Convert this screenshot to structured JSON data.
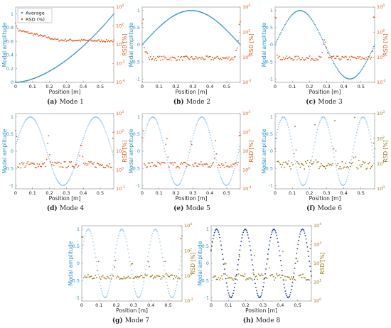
{
  "legend": {
    "average_label": "Average",
    "rsd_label": "RSD (%)"
  },
  "colors": {
    "blue": "#2b8fc9",
    "blue_light": "#8fc4ea",
    "orange": "#e05a1a",
    "olive": "#9a7a12",
    "navy": "#1f3c9c"
  },
  "chart_data": [
    {
      "type": "scatter",
      "panel": "a",
      "caption_bold": "(a)",
      "caption_text": "Mode 1",
      "xlabel": "Position [m]",
      "ylabel": "Modal amplitude",
      "y2label": "RSD [%]",
      "xlim": [
        0,
        0.58
      ],
      "ylim": [
        0,
        1.1
      ],
      "y2_log": true,
      "y2lim": [
        -4,
        4
      ],
      "x_ticks": [
        "0",
        "0.1",
        "0.2",
        "0.3",
        "0.4",
        "0.5"
      ],
      "y_ticks": [
        0,
        0.2,
        0.4,
        0.6,
        0.8,
        1
      ],
      "y2_ticks": [
        -4,
        -2,
        0,
        2,
        4
      ],
      "mode": 1,
      "phase": 0,
      "rsd_profile": "mode1",
      "series": [
        {
          "name": "Average",
          "values": "modal shape, 0 → 1"
        },
        {
          "name": "RSD (%)",
          "values": "≈10–100%, decreasing with position"
        }
      ]
    },
    {
      "type": "scatter",
      "panel": "b",
      "caption_bold": "(b)",
      "caption_text": "Mode 2",
      "xlabel": "Position [m]",
      "ylabel": "Modal amplitude",
      "y2label": "RSD [%]",
      "xlim": [
        0,
        0.58
      ],
      "ylim": [
        -1.1,
        1.1
      ],
      "y2_log": true,
      "y2lim": [
        -2,
        4
      ],
      "x_ticks": [
        "0",
        "0.1",
        "0.2",
        "0.3",
        "0.4",
        "0.5"
      ],
      "y_ticks": [
        -1,
        -0.5,
        0,
        0.5,
        1
      ],
      "y2_ticks": [
        -2,
        0,
        2,
        4
      ],
      "mode": 2,
      "phase": 0
    },
    {
      "type": "scatter",
      "panel": "c",
      "caption_bold": "(c)",
      "caption_text": "Mode 3",
      "xlabel": "Position [m]",
      "ylabel": "Modal amplitude",
      "y2label": "RSD [%]",
      "xlim": [
        0,
        0.58
      ],
      "ylim": [
        -1.1,
        1.1
      ],
      "y2_log": true,
      "y2lim": [
        -2,
        4
      ],
      "x_ticks": [
        "0",
        "0.1",
        "0.2",
        "0.3",
        "0.4",
        "0.5"
      ],
      "y_ticks": [
        -1,
        -0.5,
        0,
        0.5,
        1
      ],
      "y2_ticks": [
        -2,
        0,
        2,
        4
      ],
      "mode": 3,
      "phase": 0
    },
    {
      "type": "scatter",
      "panel": "d",
      "caption_bold": "(d)",
      "caption_text": "Mode 4",
      "xlabel": "Position [m]",
      "ylabel": "Modal amplitude",
      "y2label": "RSD [%]",
      "xlim": [
        0,
        0.58
      ],
      "ylim": [
        -1.1,
        1.1
      ],
      "y2_log": true,
      "y2lim": [
        -1,
        3
      ],
      "x_ticks": [
        "0",
        "0.1",
        "0.2",
        "0.3",
        "0.4",
        "0.5"
      ],
      "y_ticks": [
        -1,
        -0.5,
        0,
        0.5,
        1
      ],
      "y2_ticks": [
        -1,
        0,
        1,
        2,
        3
      ],
      "mode": 4,
      "phase": 1
    },
    {
      "type": "scatter",
      "panel": "e",
      "caption_bold": "(e)",
      "caption_text": "Mode 5",
      "xlabel": "Position [m]",
      "ylabel": "Modal amplitude",
      "y2label": "RSD [%]",
      "xlim": [
        0,
        0.58
      ],
      "ylim": [
        -1.1,
        1.1
      ],
      "y2_log": true,
      "y2lim": [
        -1,
        3
      ],
      "x_ticks": [
        "0",
        "0.1",
        "0.2",
        "0.3",
        "0.4",
        "0.5"
      ],
      "y_ticks": [
        -1,
        -0.5,
        0,
        0.5,
        1
      ],
      "y2_ticks": [
        -1,
        0,
        1,
        2,
        3
      ],
      "mode": 5,
      "phase": 1
    },
    {
      "type": "scatter",
      "panel": "f",
      "caption_bold": "(f)",
      "caption_text": "Mode 6",
      "xlabel": "Position [m]",
      "ylabel": "Modal amplitude",
      "y2label": "RSD [%]",
      "xlim": [
        0,
        0.58
      ],
      "ylim": [
        -1.1,
        1.1
      ],
      "y2_log": true,
      "y2lim": [
        0,
        3
      ],
      "x_ticks": [
        "0",
        "0.1",
        "0.2",
        "0.3",
        "0.4",
        "0.5"
      ],
      "y_ticks": [
        -1,
        -0.5,
        0,
        0.5,
        1
      ],
      "y2_ticks": [
        0,
        1,
        2,
        3
      ],
      "mode": 6,
      "phase": 1
    },
    {
      "type": "scatter",
      "panel": "g",
      "caption_bold": "(g)",
      "caption_text": "Mode 7",
      "xlabel": "Position [m]",
      "ylabel": "Modal amplitude",
      "y2label": "RSD [%]",
      "xlim": [
        0,
        0.58
      ],
      "ylim": [
        -1.1,
        1.1
      ],
      "y2_log": true,
      "y2lim": [
        -2,
        4
      ],
      "x_ticks": [
        "0",
        "0.1",
        "0.2",
        "0.3",
        "0.4",
        "0.5"
      ],
      "y_ticks": [
        -1,
        -0.5,
        0,
        0.5,
        1
      ],
      "y2_ticks": [
        -2,
        0,
        2,
        4
      ],
      "mode": 7,
      "phase": 1
    },
    {
      "type": "scatter",
      "panel": "h",
      "caption_bold": "(h)",
      "caption_text": "Mode 8",
      "xlabel": "Position [m]",
      "ylabel": "Modal amplitude",
      "y2label": "RSD [%]",
      "xlim": [
        0,
        0.58
      ],
      "ylim": [
        -1.1,
        1.1
      ],
      "y2_log": true,
      "y2lim": [
        0,
        4
      ],
      "x_ticks": [
        "0",
        "0.1",
        "0.2",
        "0.3",
        "0.4",
        "0.5"
      ],
      "y_ticks": [
        -1,
        -0.5,
        0,
        0.5,
        1
      ],
      "y2_ticks": [
        0,
        1,
        2,
        3,
        4
      ],
      "mode": 8,
      "phase": 1
    }
  ]
}
